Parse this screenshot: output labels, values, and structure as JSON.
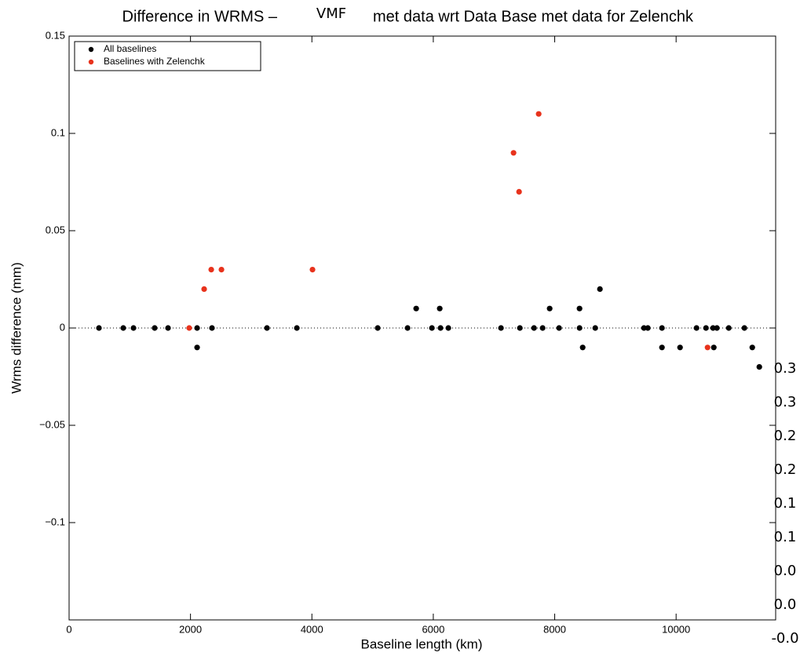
{
  "chart_data": {
    "type": "scatter",
    "title_parts": [
      "Difference in WRMS –",
      "VMF",
      "met data wrt Data Base met data for Zelenchk"
    ],
    "x_label": "Baseline length (km)",
    "y_label": "Wrms difference (mm)",
    "xlim": [
      0,
      11640
    ],
    "ylim": [
      -0.15,
      0.15
    ],
    "xticks": [
      0,
      2000,
      4000,
      6000,
      8000,
      10000
    ],
    "yticks": [
      {
        "value": -0.1,
        "label": "−0.1"
      },
      {
        "value": -0.05,
        "label": "−0.05"
      },
      0,
      0.05,
      0.1,
      0.15
    ],
    "zero_line": true,
    "legend": "upper left",
    "series": [
      {
        "name": "All baselines",
        "color": "#000000",
        "x": [
          492,
          893,
          1061,
          1410,
          1630,
          2109,
          2354,
          3260,
          3752,
          5084,
          5576,
          5977,
          6119,
          6248,
          7115,
          7426,
          7659,
          7801,
          8072,
          8409,
          8668,
          9470,
          9534,
          9767,
          10336,
          10492,
          10608,
          10672,
          10867,
          11125,
          2109,
          8461,
          9767,
          10065,
          10621,
          11255,
          11371,
          5718,
          6106,
          7917,
          8409,
          8745
        ],
        "values": [
          0,
          0,
          0,
          0,
          0,
          0,
          0,
          0,
          0,
          0,
          0,
          0,
          0,
          0,
          0,
          0,
          0,
          0,
          0,
          0,
          0,
          0,
          0,
          0,
          0,
          0,
          0,
          0,
          0,
          0,
          -0.01,
          -0.01,
          -0.01,
          -0.01,
          -0.01,
          -0.01,
          -0.02,
          0.01,
          0.01,
          0.01,
          0.01,
          0.02
        ]
      },
      {
        "name": "Baselines with Zelenchk",
        "color": "#e8321c",
        "x": [
          1979,
          2225,
          2342,
          2510,
          4010,
          7322,
          7413,
          7736,
          10518
        ],
        "values": [
          0,
          0.02,
          0.03,
          0.03,
          0.03,
          0.09,
          0.07,
          0.11,
          -0.01
        ]
      }
    ],
    "side_labels": [
      "0.3",
      "0.3",
      "0.2",
      "0.2",
      "0.1",
      "0.1",
      "0.0",
      "0.0",
      "-0.0"
    ]
  }
}
